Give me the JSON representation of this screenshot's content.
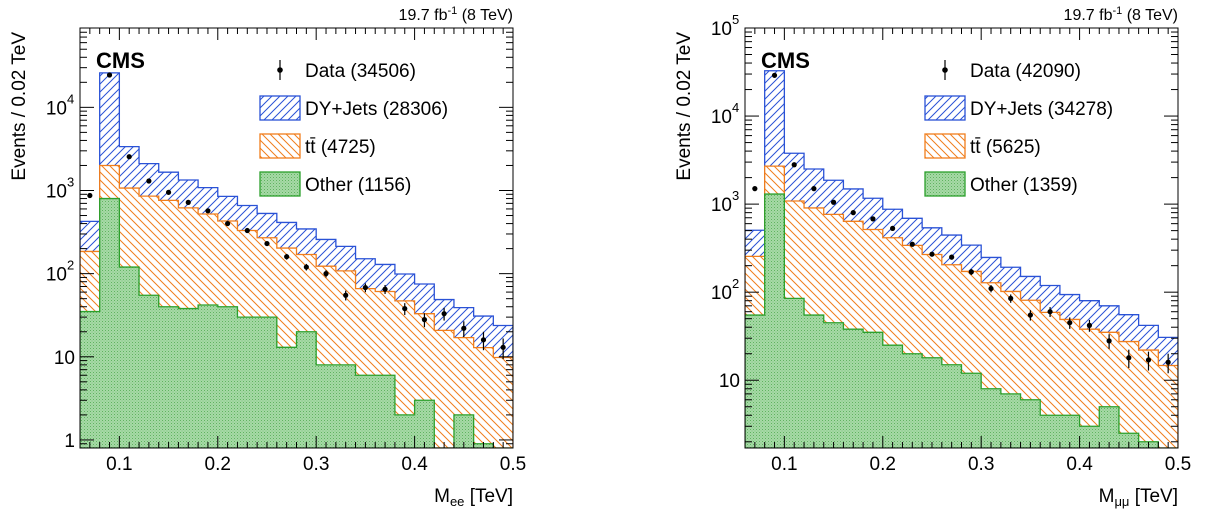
{
  "chart_data": [
    {
      "type": "histogram-stacked-log",
      "label": "CMS",
      "lumi": "19.7 fb",
      "lumi_sup": "-1",
      "lumi_energy": " (8 TeV)",
      "ylabel": "Events / 0.02 TeV",
      "xlabel_main": "M",
      "xlabel_sub": "ee",
      "xlabel_unit": " [TeV]",
      "xlim": [
        0.06,
        0.5
      ],
      "ylim": [
        0.8,
        90000
      ],
      "yscale": "log",
      "bin_edges": [
        0.06,
        0.08,
        0.1,
        0.12,
        0.14,
        0.16,
        0.18,
        0.2,
        0.22,
        0.24,
        0.26,
        0.28,
        0.3,
        0.32,
        0.34,
        0.36,
        0.38,
        0.4,
        0.42,
        0.44,
        0.46,
        0.48,
        0.5
      ],
      "xticks": [
        0.1,
        0.2,
        0.3,
        0.4,
        0.5
      ],
      "xtick_labels": [
        "0.1",
        "0.2",
        "0.3",
        "0.4",
        "0.5"
      ],
      "yticks": [
        {
          "v": 1,
          "base": "1",
          "exp": ""
        },
        {
          "v": 10,
          "base": "10",
          "exp": ""
        },
        {
          "v": 100,
          "base": "10",
          "exp": "2"
        },
        {
          "v": 1000,
          "base": "10",
          "exp": "3"
        },
        {
          "v": 10000,
          "base": "10",
          "exp": "4"
        }
      ],
      "series": [
        {
          "name": "Other",
          "count": "(1156)",
          "color": "#2ca02c",
          "fill": "#a6d9a6",
          "values": [
            35,
            800,
            120,
            55,
            40,
            38,
            42,
            40,
            30,
            30,
            13,
            20,
            8,
            8,
            6,
            6,
            2,
            3,
            0.8,
            2,
            0.9,
            0.8
          ]
        },
        {
          "name": "tt̄",
          "name_base": "tt",
          "count": "(4725)",
          "color": "#f07e1c",
          "fill": "#fbd7b4",
          "values": [
            150,
            1200,
            950,
            800,
            720,
            580,
            480,
            390,
            300,
            240,
            190,
            150,
            115,
            100,
            60,
            55,
            45,
            30,
            20,
            15,
            12,
            9
          ]
        },
        {
          "name": "DY+Jets",
          "count": "(28306)",
          "color": "#2a52d6",
          "fill": "#c9d3f5",
          "values": [
            240,
            24000,
            2300,
            1250,
            900,
            720,
            560,
            420,
            330,
            260,
            210,
            175,
            135,
            105,
            85,
            68,
            52,
            42,
            28,
            22,
            18,
            14
          ]
        }
      ],
      "data_points": {
        "name": "Data",
        "count": "(34506)",
        "values": [
          870,
          24500,
          2550,
          1300,
          950,
          720,
          570,
          400,
          330,
          230,
          160,
          120,
          100,
          55,
          68,
          65,
          38,
          28,
          33,
          22,
          16,
          13
        ]
      }
    },
    {
      "type": "histogram-stacked-log",
      "label": "CMS",
      "lumi": "19.7 fb",
      "lumi_sup": "-1",
      "lumi_energy": " (8 TeV)",
      "ylabel": "Events / 0.02 TeV",
      "xlabel_main": "M",
      "xlabel_sub": "μμ",
      "xlabel_unit": " [TeV]",
      "xlim": [
        0.06,
        0.5
      ],
      "ylim": [
        1.7,
        100000
      ],
      "yscale": "log",
      "bin_edges": [
        0.06,
        0.08,
        0.1,
        0.12,
        0.14,
        0.16,
        0.18,
        0.2,
        0.22,
        0.24,
        0.26,
        0.28,
        0.3,
        0.32,
        0.34,
        0.36,
        0.38,
        0.4,
        0.42,
        0.44,
        0.46,
        0.48,
        0.5
      ],
      "xticks": [
        0.1,
        0.2,
        0.3,
        0.4,
        0.5
      ],
      "xtick_labels": [
        "0.1",
        "0.2",
        "0.3",
        "0.4",
        "0.5"
      ],
      "yticks": [
        {
          "v": 10,
          "base": "10",
          "exp": ""
        },
        {
          "v": 100,
          "base": "10",
          "exp": "2"
        },
        {
          "v": 1000,
          "base": "10",
          "exp": "3"
        },
        {
          "v": 10000,
          "base": "10",
          "exp": "4"
        },
        {
          "v": 100000,
          "base": "10",
          "exp": "5"
        }
      ],
      "series": [
        {
          "name": "Other",
          "count": "(1359)",
          "color": "#2ca02c",
          "fill": "#a6d9a6",
          "values": [
            55,
            1300,
            85,
            55,
            45,
            38,
            35,
            25,
            20,
            18,
            15,
            12,
            8,
            7,
            6,
            4,
            4,
            3,
            5,
            2.5,
            2,
            1.7
          ]
        },
        {
          "name": "tt̄",
          "name_base": "tt",
          "count": "(5625)",
          "color": "#f07e1c",
          "fill": "#fbd7b4",
          "values": [
            200,
            1400,
            1000,
            850,
            720,
            600,
            480,
            390,
            320,
            250,
            190,
            160,
            120,
            95,
            75,
            55,
            45,
            35,
            30,
            25,
            20,
            13
          ]
        },
        {
          "name": "DY+Jets",
          "count": "(34278)",
          "color": "#2a52d6",
          "fill": "#c9d3f5",
          "values": [
            250,
            30000,
            2700,
            1600,
            1100,
            850,
            650,
            460,
            350,
            270,
            240,
            170,
            120,
            90,
            70,
            60,
            45,
            42,
            35,
            28,
            20,
            16
          ]
        }
      ],
      "data_points": {
        "name": "Data",
        "count": "(42090)",
        "values": [
          1500,
          29000,
          2800,
          1500,
          1050,
          800,
          680,
          530,
          350,
          270,
          250,
          170,
          110,
          85,
          55,
          60,
          45,
          42,
          28,
          18,
          17,
          16
        ]
      }
    }
  ]
}
